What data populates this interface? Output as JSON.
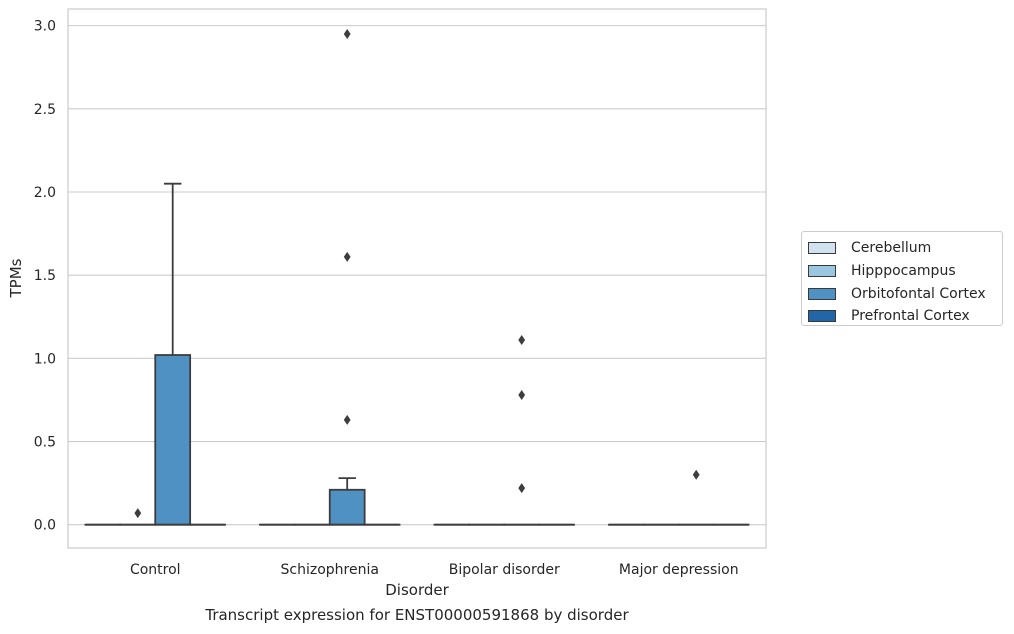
{
  "chart_data": {
    "type": "box",
    "xlabel": "Disorder",
    "ylabel": "TPMs",
    "ylim": [
      -0.14,
      3.1
    ],
    "yticks": [
      "0.0",
      "0.5",
      "1.0",
      "1.5",
      "2.0",
      "2.5",
      "3.0"
    ],
    "grid": true,
    "legend_position": "right",
    "categories": [
      "Control",
      "Schizophrenia",
      "Bipolar disorder",
      "Major depression"
    ],
    "series": [
      {
        "name": "Cerebellum",
        "color": "#d1e1f0",
        "boxes": [
          {
            "min": 0,
            "q1": 0,
            "median": 0,
            "q3": 0,
            "max": 0,
            "outliers": []
          },
          {
            "min": 0,
            "q1": 0,
            "median": 0,
            "q3": 0,
            "max": 0,
            "outliers": []
          },
          {
            "min": 0,
            "q1": 0,
            "median": 0,
            "q3": 0,
            "max": 0,
            "outliers": []
          },
          {
            "min": 0,
            "q1": 0,
            "median": 0,
            "q3": 0,
            "max": 0,
            "outliers": []
          }
        ]
      },
      {
        "name": "Hipppocampus",
        "color": "#9ac6e0",
        "boxes": [
          {
            "min": 0,
            "q1": 0,
            "median": 0,
            "q3": 0,
            "max": 0,
            "outliers": [
              0.07
            ]
          },
          {
            "min": 0,
            "q1": 0,
            "median": 0,
            "q3": 0,
            "max": 0,
            "outliers": []
          },
          {
            "min": 0,
            "q1": 0,
            "median": 0,
            "q3": 0,
            "max": 0,
            "outliers": []
          },
          {
            "min": 0,
            "q1": 0,
            "median": 0,
            "q3": 0,
            "max": 0,
            "outliers": []
          }
        ]
      },
      {
        "name": "Orbitofontal Cortex",
        "color": "#4f91c3",
        "boxes": [
          {
            "min": 0,
            "q1": 0,
            "median": 0,
            "q3": 1.02,
            "max": 2.05,
            "outliers": []
          },
          {
            "min": 0,
            "q1": 0,
            "median": 0,
            "q3": 0.21,
            "max": 0.28,
            "outliers": [
              0.63,
              1.61,
              2.95
            ]
          },
          {
            "min": 0,
            "q1": 0,
            "median": 0,
            "q3": 0,
            "max": 0,
            "outliers": [
              0.22,
              0.78,
              1.11
            ]
          },
          {
            "min": 0,
            "q1": 0,
            "median": 0,
            "q3": 0,
            "max": 0,
            "outliers": [
              0.3
            ]
          }
        ]
      },
      {
        "name": "Prefrontal Cortex",
        "color": "#2366a8",
        "boxes": [
          {
            "min": 0,
            "q1": 0,
            "median": 0,
            "q3": 0,
            "max": 0,
            "outliers": []
          },
          {
            "min": 0,
            "q1": 0,
            "median": 0,
            "q3": 0,
            "max": 0,
            "outliers": []
          },
          {
            "min": 0,
            "q1": 0,
            "median": 0,
            "q3": 0,
            "max": 0,
            "outliers": []
          },
          {
            "min": 0,
            "q1": 0,
            "median": 0,
            "q3": 0,
            "max": 0,
            "outliers": []
          }
        ]
      }
    ]
  },
  "caption": "Transcript expression for ENST00000591868 by disorder"
}
